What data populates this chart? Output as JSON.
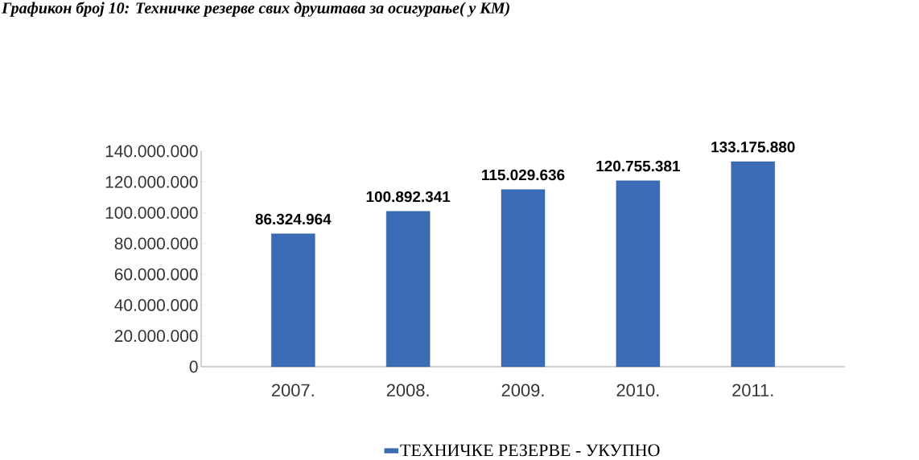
{
  "chart_data": {
    "type": "bar",
    "title": "Графикон број 10: Техничке резерве свих друштава за осигурање( у КМ)",
    "categories": [
      "2007.",
      "2008.",
      "2009.",
      "2010.",
      "2011."
    ],
    "series": [
      {
        "name": "ТЕХНИЧКЕ РЕЗЕРВЕ - УКУПНО",
        "color": "#3a6db5",
        "values": [
          86324964,
          100892341,
          115029636,
          120755381,
          133175880
        ],
        "value_labels": [
          "86.324.964",
          "100.892.341",
          "115.029.636",
          "120.755.381",
          "133.175.880"
        ]
      }
    ],
    "ylim": [
      0,
      140000000
    ],
    "yticks": [
      {
        "value": 0,
        "label": "0"
      },
      {
        "value": 20000000,
        "label": "20.000.000"
      },
      {
        "value": 40000000,
        "label": "40.000.000"
      },
      {
        "value": 60000000,
        "label": "60.000.000"
      },
      {
        "value": 80000000,
        "label": "80.000.000"
      },
      {
        "value": 100000000,
        "label": "100.000.000"
      },
      {
        "value": 120000000,
        "label": "120.000.000"
      },
      {
        "value": 140000000,
        "label": "140.000.000"
      }
    ],
    "grid": false,
    "legend": "bottom"
  }
}
